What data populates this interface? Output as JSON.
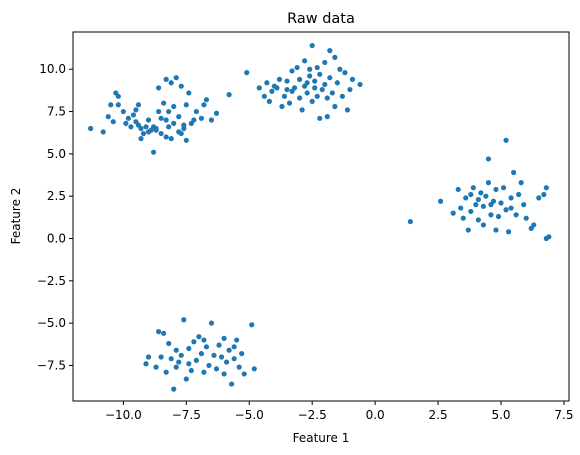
{
  "chart_data": {
    "type": "scatter",
    "title": "Raw data",
    "xlabel": "Feature 1",
    "ylabel": "Feature 2",
    "xlim": [
      -12.0,
      7.7
    ],
    "ylim": [
      -9.6,
      12.2
    ],
    "xticks": [
      -10.0,
      -7.5,
      -5.0,
      -2.5,
      0.0,
      2.5,
      5.0,
      7.5
    ],
    "xtick_labels": [
      "−10.0",
      "−7.5",
      "−5.0",
      "−2.5",
      "0.0",
      "2.5",
      "5.0",
      "7.5"
    ],
    "yticks": [
      -7.5,
      -5.0,
      -2.5,
      0.0,
      2.5,
      5.0,
      7.5,
      10.0
    ],
    "ytick_labels": [
      "−7.5",
      "−5.0",
      "−2.5",
      "0.0",
      "2.5",
      "5.0",
      "7.5",
      "10.0"
    ],
    "grid": false,
    "color": "#1f77b4",
    "series": [
      {
        "points": [
          [
            -11.3,
            6.5
          ],
          [
            -10.8,
            6.3
          ],
          [
            -10.6,
            7.2
          ],
          [
            -10.5,
            7.9
          ],
          [
            -10.3,
            8.6
          ],
          [
            -10.2,
            8.4
          ],
          [
            -10.2,
            7.9
          ],
          [
            -10.0,
            7.5
          ],
          [
            -10.4,
            6.9
          ],
          [
            -9.8,
            7.1
          ],
          [
            -9.7,
            6.6
          ],
          [
            -9.5,
            6.9
          ],
          [
            -9.4,
            7.9
          ],
          [
            -9.5,
            7.6
          ],
          [
            -9.3,
            6.5
          ],
          [
            -9.3,
            5.9
          ],
          [
            -9.4,
            6.7
          ],
          [
            -9.2,
            6.2
          ],
          [
            -9.1,
            6.6
          ],
          [
            -9.0,
            7.0
          ],
          [
            -8.9,
            6.4
          ],
          [
            -8.8,
            5.1
          ],
          [
            -8.7,
            6.4
          ],
          [
            -8.6,
            7.5
          ],
          [
            -8.7,
            6.5
          ],
          [
            -8.6,
            8.9
          ],
          [
            -8.5,
            7.1
          ],
          [
            -8.5,
            6.2
          ],
          [
            -8.4,
            8.0
          ],
          [
            -8.3,
            7.0
          ],
          [
            -8.3,
            6.0
          ],
          [
            -8.3,
            9.4
          ],
          [
            -8.2,
            7.5
          ],
          [
            -8.2,
            6.6
          ],
          [
            -8.1,
            9.2
          ],
          [
            -8.0,
            7.8
          ],
          [
            -8.0,
            6.8
          ],
          [
            -7.9,
            9.5
          ],
          [
            -7.8,
            7.2
          ],
          [
            -7.8,
            6.3
          ],
          [
            -7.7,
            6.2
          ],
          [
            -7.7,
            9.0
          ],
          [
            -7.6,
            6.7
          ],
          [
            -7.5,
            5.8
          ],
          [
            -7.5,
            7.9
          ],
          [
            -7.4,
            8.6
          ],
          [
            -7.3,
            6.8
          ],
          [
            -7.2,
            7.0
          ],
          [
            -7.1,
            7.5
          ],
          [
            -6.9,
            7.1
          ],
          [
            -6.8,
            7.9
          ],
          [
            -6.7,
            8.2
          ],
          [
            -6.5,
            7.0
          ],
          [
            -6.3,
            7.4
          ],
          [
            -9.9,
            6.8
          ],
          [
            -9.0,
            6.3
          ],
          [
            -8.1,
            5.9
          ],
          [
            -7.6,
            6.5
          ],
          [
            -8.8,
            6.6
          ],
          [
            -9.6,
            7.3
          ]
        ]
      },
      {
        "points": [
          [
            -5.8,
            8.5
          ],
          [
            -5.1,
            9.8
          ],
          [
            -4.6,
            8.9
          ],
          [
            -4.4,
            8.4
          ],
          [
            -4.3,
            9.2
          ],
          [
            -4.2,
            8.1
          ],
          [
            -4.1,
            8.7
          ],
          [
            -4.0,
            9.0
          ],
          [
            -3.9,
            8.9
          ],
          [
            -3.8,
            9.4
          ],
          [
            -3.7,
            7.8
          ],
          [
            -3.6,
            8.4
          ],
          [
            -3.5,
            9.3
          ],
          [
            -3.4,
            8.0
          ],
          [
            -3.3,
            8.7
          ],
          [
            -3.3,
            9.9
          ],
          [
            -3.1,
            10.1
          ],
          [
            -3.0,
            9.4
          ],
          [
            -3.0,
            8.3
          ],
          [
            -2.9,
            7.6
          ],
          [
            -2.8,
            10.5
          ],
          [
            -2.8,
            9.0
          ],
          [
            -2.7,
            8.6
          ],
          [
            -2.6,
            10.0
          ],
          [
            -2.6,
            9.6
          ],
          [
            -2.5,
            8.1
          ],
          [
            -2.5,
            11.4
          ],
          [
            -2.4,
            9.3
          ],
          [
            -2.4,
            8.9
          ],
          [
            -2.3,
            10.1
          ],
          [
            -2.3,
            8.4
          ],
          [
            -2.2,
            7.1
          ],
          [
            -2.2,
            9.7
          ],
          [
            -2.1,
            8.8
          ],
          [
            -2.0,
            10.4
          ],
          [
            -2.0,
            9.1
          ],
          [
            -1.9,
            7.2
          ],
          [
            -1.9,
            8.3
          ],
          [
            -1.8,
            11.1
          ],
          [
            -1.8,
            9.5
          ],
          [
            -1.7,
            8.6
          ],
          [
            -1.6,
            10.7
          ],
          [
            -1.6,
            7.8
          ],
          [
            -1.5,
            9.2
          ],
          [
            -1.4,
            10.0
          ],
          [
            -1.3,
            8.4
          ],
          [
            -1.2,
            9.8
          ],
          [
            -1.1,
            7.6
          ],
          [
            -1.0,
            8.8
          ],
          [
            -0.9,
            9.4
          ],
          [
            -0.6,
            9.1
          ],
          [
            -3.2,
            8.9
          ],
          [
            -2.7,
            9.2
          ],
          [
            -3.5,
            8.8
          ]
        ]
      },
      {
        "points": [
          [
            1.4,
            1.0
          ],
          [
            2.6,
            2.2
          ],
          [
            3.1,
            1.5
          ],
          [
            3.3,
            2.9
          ],
          [
            3.4,
            1.8
          ],
          [
            3.5,
            1.2
          ],
          [
            3.6,
            2.4
          ],
          [
            3.7,
            0.5
          ],
          [
            3.8,
            2.6
          ],
          [
            3.8,
            1.6
          ],
          [
            3.9,
            3.0
          ],
          [
            4.0,
            2.0
          ],
          [
            4.1,
            1.1
          ],
          [
            4.2,
            2.7
          ],
          [
            4.3,
            0.8
          ],
          [
            4.3,
            1.9
          ],
          [
            4.4,
            2.5
          ],
          [
            4.5,
            3.3
          ],
          [
            4.5,
            4.7
          ],
          [
            4.6,
            1.4
          ],
          [
            4.7,
            2.2
          ],
          [
            4.8,
            0.5
          ],
          [
            4.8,
            2.9
          ],
          [
            4.9,
            1.3
          ],
          [
            5.0,
            2.1
          ],
          [
            5.1,
            3.0
          ],
          [
            5.2,
            1.7
          ],
          [
            5.2,
            5.8
          ],
          [
            5.3,
            0.4
          ],
          [
            5.4,
            2.4
          ],
          [
            5.5,
            3.9
          ],
          [
            5.6,
            1.4
          ],
          [
            5.7,
            2.6
          ],
          [
            5.8,
            3.3
          ],
          [
            5.9,
            2.0
          ],
          [
            6.0,
            1.2
          ],
          [
            6.2,
            0.6
          ],
          [
            6.3,
            0.8
          ],
          [
            6.5,
            2.4
          ],
          [
            6.7,
            2.6
          ],
          [
            6.8,
            3.0
          ],
          [
            6.9,
            0.1
          ],
          [
            6.8,
            0.0
          ],
          [
            4.1,
            2.3
          ],
          [
            4.6,
            2.0
          ],
          [
            5.4,
            1.8
          ]
        ]
      },
      {
        "points": [
          [
            -9.1,
            -7.4
          ],
          [
            -9.0,
            -7.0
          ],
          [
            -8.7,
            -7.6
          ],
          [
            -8.6,
            -5.5
          ],
          [
            -8.5,
            -7.0
          ],
          [
            -8.4,
            -5.6
          ],
          [
            -8.3,
            -7.9
          ],
          [
            -8.2,
            -6.2
          ],
          [
            -8.1,
            -7.1
          ],
          [
            -8.0,
            -8.9
          ],
          [
            -7.9,
            -6.6
          ],
          [
            -7.8,
            -7.3
          ],
          [
            -7.7,
            -6.9
          ],
          [
            -7.6,
            -4.8
          ],
          [
            -7.5,
            -8.3
          ],
          [
            -7.4,
            -6.5
          ],
          [
            -7.3,
            -7.8
          ],
          [
            -7.2,
            -6.1
          ],
          [
            -7.1,
            -7.2
          ],
          [
            -7.0,
            -5.8
          ],
          [
            -6.9,
            -6.8
          ],
          [
            -6.8,
            -7.9
          ],
          [
            -6.7,
            -6.4
          ],
          [
            -6.6,
            -7.5
          ],
          [
            -6.5,
            -5.0
          ],
          [
            -6.4,
            -6.9
          ],
          [
            -6.3,
            -7.7
          ],
          [
            -6.2,
            -6.3
          ],
          [
            -6.1,
            -7.0
          ],
          [
            -6.0,
            -5.9
          ],
          [
            -5.9,
            -7.3
          ],
          [
            -5.8,
            -6.6
          ],
          [
            -5.7,
            -8.6
          ],
          [
            -5.6,
            -7.1
          ],
          [
            -5.5,
            -6.0
          ],
          [
            -5.4,
            -7.6
          ],
          [
            -5.3,
            -6.8
          ],
          [
            -5.2,
            -8.0
          ],
          [
            -4.9,
            -5.1
          ],
          [
            -4.8,
            -7.7
          ],
          [
            -7.4,
            -7.4
          ],
          [
            -6.8,
            -6.0
          ],
          [
            -7.9,
            -7.6
          ],
          [
            -6.0,
            -8.0
          ],
          [
            -5.6,
            -6.4
          ]
        ]
      }
    ]
  }
}
